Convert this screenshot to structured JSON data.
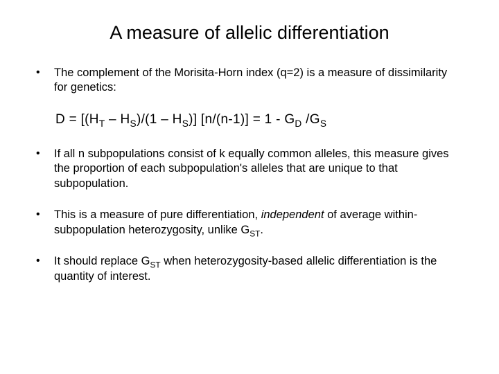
{
  "typography": {
    "title_fontsize": 27,
    "body_fontsize": 16.5,
    "formula_fontsize": 19,
    "font_family": "Arial",
    "text_color": "#000000",
    "background_color": "#ffffff"
  },
  "title": "A measure of allelic differentiation",
  "bullets": [
    {
      "text": "The complement of the Morisita-Horn index (q=2) is a measure of dissimilarity for genetics:"
    },
    {
      "text": "If all n subpopulations consist of k equally common alleles, this measure gives the proportion of each subpopulation's alleles that are unique to that subpopulation."
    },
    {
      "text_before_italic": "This is a measure of pure differentiation, ",
      "italic_word": "independent",
      "text_after_italic": " of average within-subpopulation heterozygosity, unlike G",
      "sub1": "ST",
      "tail": "."
    },
    {
      "text_before": "It should replace G",
      "sub1": "ST",
      "text_after": " when heterozygosity-based allelic differentiation is the quantity of interest."
    }
  ],
  "formula": {
    "p1": "D = [(H",
    "s1": "T",
    "p2": " – H",
    "s2": "S",
    "p3": ")/(1  –  H",
    "s3": "S",
    "p4": ")] [n/(n-1)] = 1 - G",
    "s4": "D",
    "p5": " /G",
    "s5": "S"
  },
  "bullet_char": "•"
}
